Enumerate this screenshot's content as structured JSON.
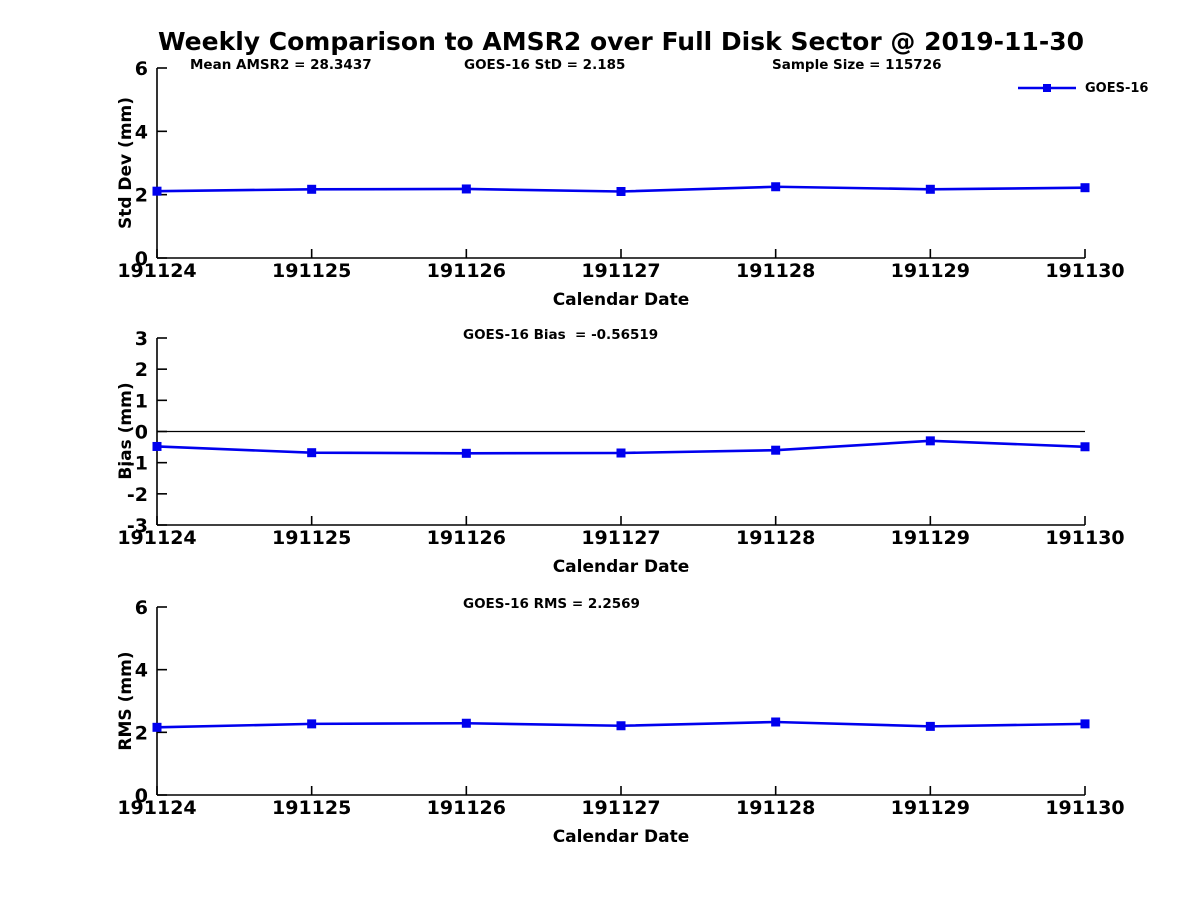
{
  "chart_data": {
    "type": "line",
    "title": "Weekly Comparison to AMSR2 over Full Disk Sector @ 2019-11-30",
    "categories": [
      "191124",
      "191125",
      "191126",
      "191127",
      "191128",
      "191129",
      "191130"
    ],
    "series_name": "GOES-16",
    "legend": {
      "label": "GOES-16",
      "position": "top-right"
    },
    "line_color": "#0000EE",
    "axis_color": "#000000",
    "text_color": "#000000",
    "background_color": "#FFFFFF",
    "grid": false,
    "subplots": [
      {
        "name": "std-dev",
        "ylabel": "Std Dev (mm)",
        "xlabel": "Calendar Date",
        "ylim": [
          0,
          6
        ],
        "yticks": [
          0,
          2,
          4,
          6
        ],
        "values": [
          2.11,
          2.17,
          2.18,
          2.1,
          2.25,
          2.17,
          2.22
        ],
        "annotations": [
          {
            "text": "Mean AMSR2 = 28.3437"
          },
          {
            "text": "GOES-16 StD = 2.185"
          },
          {
            "text": "Sample Size = 115726"
          }
        ]
      },
      {
        "name": "bias",
        "ylabel": "Bias (mm)",
        "xlabel": "Calendar Date",
        "ylim": [
          -3,
          3
        ],
        "yticks": [
          -3,
          -2,
          -1,
          0,
          1,
          2,
          3
        ],
        "zero_line": true,
        "values": [
          -0.48,
          -0.68,
          -0.7,
          -0.69,
          -0.6,
          -0.3,
          -0.49
        ],
        "annotations": [
          {
            "text": "GOES-16 Bias  = -0.56519"
          }
        ]
      },
      {
        "name": "rms",
        "ylabel": "RMS (mm)",
        "xlabel": "Calendar Date",
        "ylim": [
          0,
          6
        ],
        "yticks": [
          0,
          2,
          4,
          6
        ],
        "values": [
          2.16,
          2.27,
          2.29,
          2.21,
          2.33,
          2.19,
          2.27
        ],
        "annotations": [
          {
            "text": "GOES-16 RMS = 2.2569"
          }
        ]
      }
    ]
  }
}
